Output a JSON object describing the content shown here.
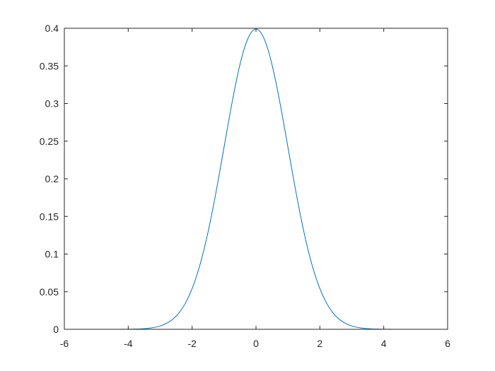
{
  "chart_data": {
    "type": "line",
    "title": "",
    "xlabel": "",
    "ylabel": "",
    "xlim": [
      -6,
      6
    ],
    "ylim": [
      0,
      0.4
    ],
    "grid": false,
    "box": true,
    "line_color": "#0072BD",
    "x_ticks": [
      "-6",
      "-4",
      "-2",
      "0",
      "2",
      "4",
      "6"
    ],
    "x_tick_values": [
      -6,
      -4,
      -2,
      0,
      2,
      4,
      6
    ],
    "y_ticks": [
      "0",
      "0.05",
      "0.1",
      "0.15",
      "0.2",
      "0.25",
      "0.3",
      "0.35",
      "0.4"
    ],
    "y_tick_values": [
      0,
      0.05,
      0.1,
      0.15,
      0.2,
      0.25,
      0.3,
      0.35,
      0.4
    ],
    "series": [
      {
        "x": [
          -6,
          -5.8,
          -5.6,
          -5.4,
          -5.2,
          -5,
          -4.8,
          -4.6,
          -4.4,
          -4.2,
          -4,
          -3.8,
          -3.6,
          -3.4,
          -3.2,
          -3,
          -2.8,
          -2.6,
          -2.4,
          -2.2,
          -2,
          -1.8,
          -1.6,
          -1.4,
          -1.2,
          -1,
          -0.8,
          -0.6,
          -0.4,
          -0.2,
          0,
          0.2,
          0.4,
          0.6,
          0.8,
          1,
          1.2,
          1.4,
          1.6,
          1.8,
          2,
          2.2,
          2.4,
          2.6,
          2.8,
          3,
          3.2,
          3.4,
          3.6,
          3.8,
          4,
          4.2,
          4.4,
          4.6,
          4.8,
          5,
          5.2,
          5.4,
          5.6,
          5.8,
          6
        ],
        "y": [
          0,
          0,
          0,
          0,
          0,
          0,
          0,
          0,
          0,
          0.0001,
          0.0001,
          0.0003,
          0.0006,
          0.0012,
          0.0024,
          0.0044,
          0.0079,
          0.0136,
          0.0224,
          0.0355,
          0.054,
          0.079,
          0.1109,
          0.1497,
          0.1942,
          0.242,
          0.2897,
          0.3332,
          0.3683,
          0.391,
          0.3989,
          0.391,
          0.3683,
          0.3332,
          0.2897,
          0.242,
          0.1942,
          0.1497,
          0.1109,
          0.079,
          0.054,
          0.0355,
          0.0224,
          0.0136,
          0.0079,
          0.0044,
          0.0024,
          0.0012,
          0.0006,
          0.0003,
          0.0001,
          0.0001,
          0,
          0,
          0,
          0,
          0,
          0,
          0,
          0,
          0
        ]
      }
    ]
  }
}
